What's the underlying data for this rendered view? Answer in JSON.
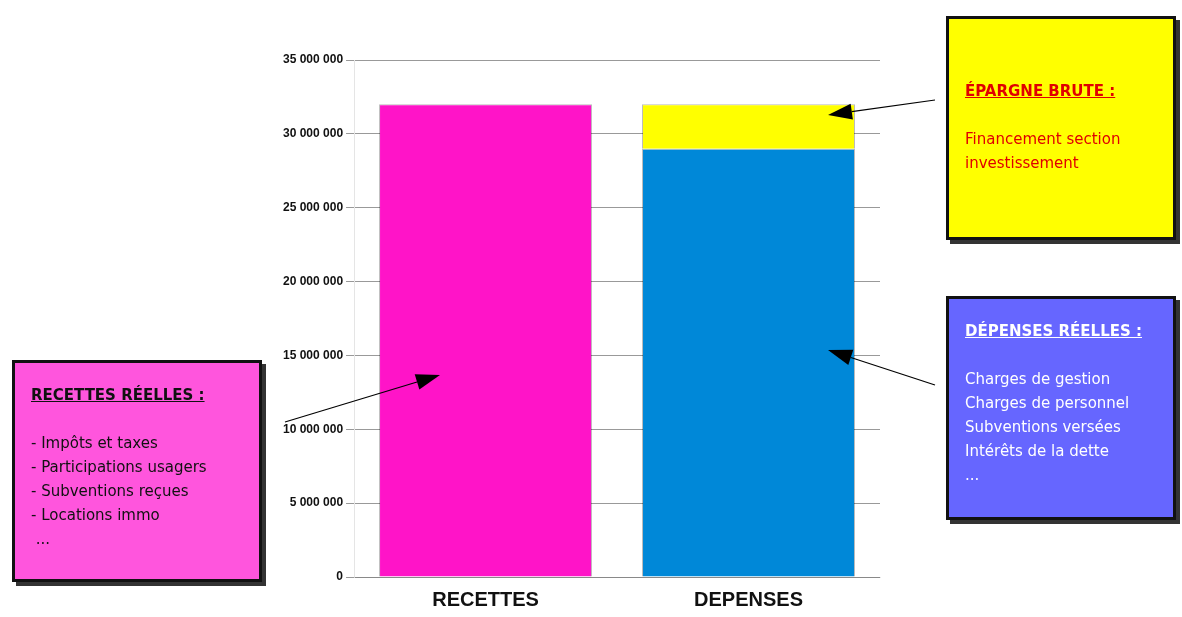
{
  "chart_data": {
    "type": "bar",
    "stacked": true,
    "categories": [
      "RECETTES",
      "DEPENSES"
    ],
    "series": [
      {
        "color": "#ff14c8",
        "values": [
          32000000,
          null
        ]
      },
      {
        "color": "#0088d8",
        "values": [
          null,
          29000000
        ]
      },
      {
        "color": "#ffff00",
        "values": [
          null,
          3000000
        ]
      }
    ],
    "ylim": [
      0,
      35000000
    ],
    "yticks": [
      {
        "value": 0,
        "label": "0"
      },
      {
        "value": 5000000,
        "label": "5 000 000"
      },
      {
        "value": 10000000,
        "label": "10 000 000"
      },
      {
        "value": 15000000,
        "label": "15 000 000"
      },
      {
        "value": 20000000,
        "label": "20 000 000"
      },
      {
        "value": 25000000,
        "label": "25 000 000"
      },
      {
        "value": 30000000,
        "label": "30 000 000"
      },
      {
        "value": 35000000,
        "label": "35 000 000"
      }
    ],
    "grid": "y",
    "annotations": [
      "ÉPARGNE BRUTE :\n\nFinancement section\ninvestissement",
      "DÉPENSES RÉELLES :\n\nCharges de gestion\nCharges de personnel\nSubventions versées\nIntérêts de la dette\n...",
      "RECETTES RÉELLES :\n\n- Impôts et taxes\n- Participations usagers\n- Subventions reçues\n- Locations immo\n ..."
    ]
  }
}
